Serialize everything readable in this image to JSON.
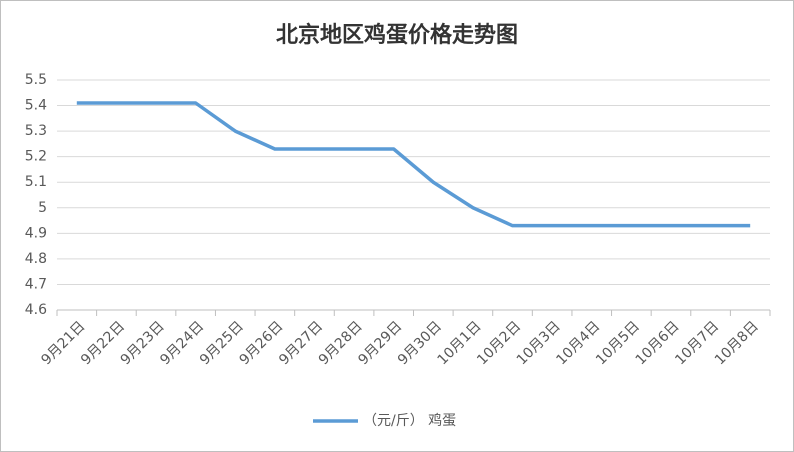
{
  "chart_data": {
    "type": "line",
    "title": "北京地区鸡蛋价格走势图",
    "categories": [
      "9月21日",
      "9月22日",
      "9月23日",
      "9月24日",
      "9月25日",
      "9月26日",
      "9月27日",
      "9月28日",
      "9月29日",
      "9月30日",
      "10月1日",
      "10月2日",
      "10月3日",
      "10月4日",
      "10月5日",
      "10月6日",
      "10月7日",
      "10月8日"
    ],
    "series": [
      {
        "name": "（元/斤） 鸡蛋",
        "color": "#5b9bd5",
        "values": [
          5.41,
          5.41,
          5.41,
          5.41,
          5.3,
          5.23,
          5.23,
          5.23,
          5.23,
          5.1,
          5.0,
          4.93,
          4.93,
          4.93,
          4.93,
          4.93,
          4.93,
          4.93
        ]
      }
    ],
    "ylim": [
      4.6,
      5.5
    ],
    "yticks": [
      4.6,
      4.7,
      4.8,
      4.9,
      5,
      5.1,
      5.2,
      5.3,
      5.4,
      5.5
    ],
    "grid": true,
    "legend": "bottom"
  }
}
